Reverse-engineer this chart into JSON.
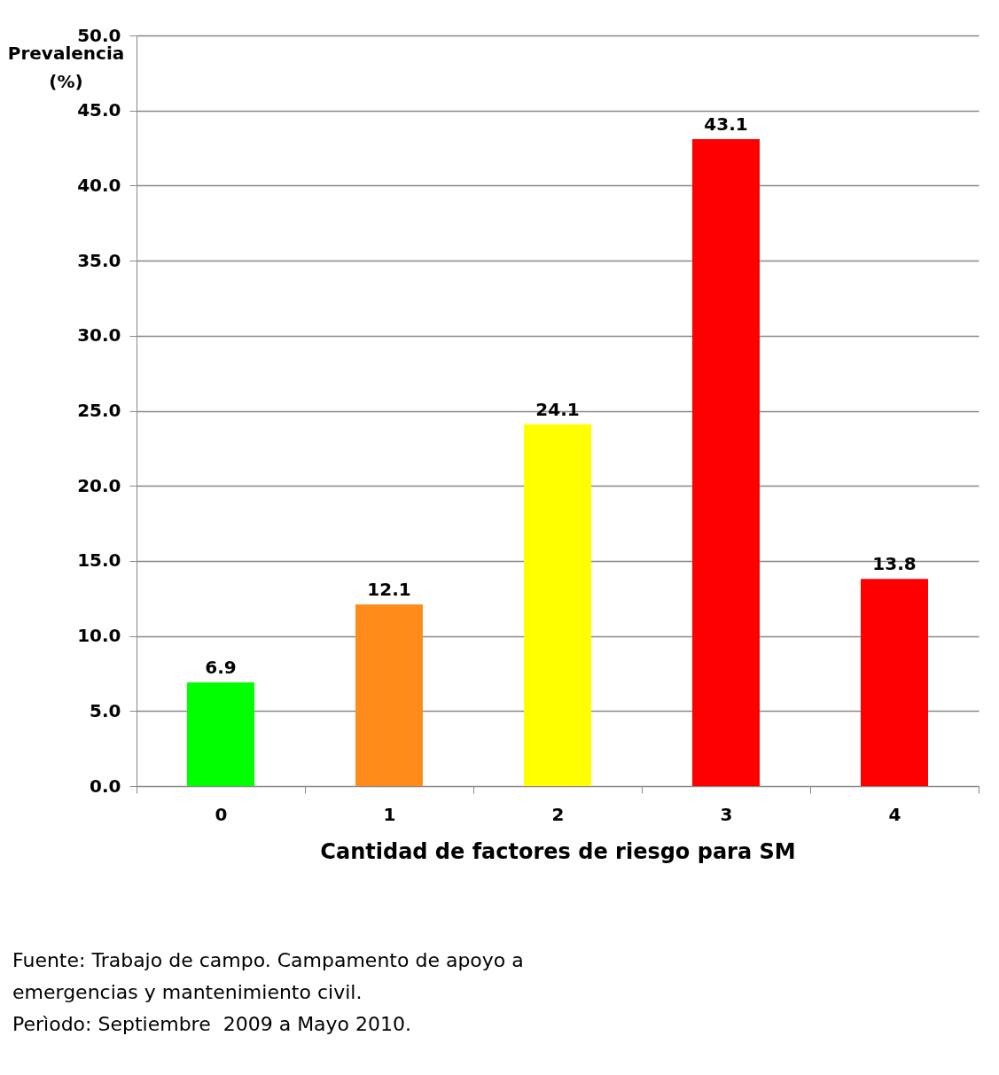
{
  "chart_data": {
    "type": "bar",
    "xlabel": "Cantidad de factores de riesgo para SM",
    "ylabel": "Prevalencia (%)",
    "categories": [
      "0",
      "1",
      "2",
      "3",
      "4"
    ],
    "values": [
      6.9,
      12.1,
      24.1,
      43.1,
      13.8
    ],
    "colors": [
      "#00ff00",
      "#ff8c1a",
      "#ffff00",
      "#ff0000",
      "#ff0000"
    ],
    "data_labels": true,
    "ylim": [
      0,
      50
    ],
    "yticks": [
      {
        "value": 0,
        "label": "0.0"
      },
      {
        "value": 5,
        "label": "5.0"
      },
      {
        "value": 10,
        "label": "10.0"
      },
      {
        "value": 15,
        "label": "15.0"
      },
      {
        "value": 20,
        "label": "20.0"
      },
      {
        "value": 25,
        "label": "25.0"
      },
      {
        "value": 30,
        "label": "30.0"
      },
      {
        "value": 35,
        "label": "35.0"
      },
      {
        "value": 40,
        "label": "40.0"
      },
      {
        "value": 45,
        "label": "45.0"
      },
      {
        "value": 50,
        "label": "50.0"
      }
    ],
    "grid": "y",
    "annotations": [
      "Fuente: Trabajo de campo. Campamento de apoyo a",
      "emergencias y mantenimiento civil.",
      "Perìodo: Septiembre  2009 a Mayo 2010."
    ]
  }
}
